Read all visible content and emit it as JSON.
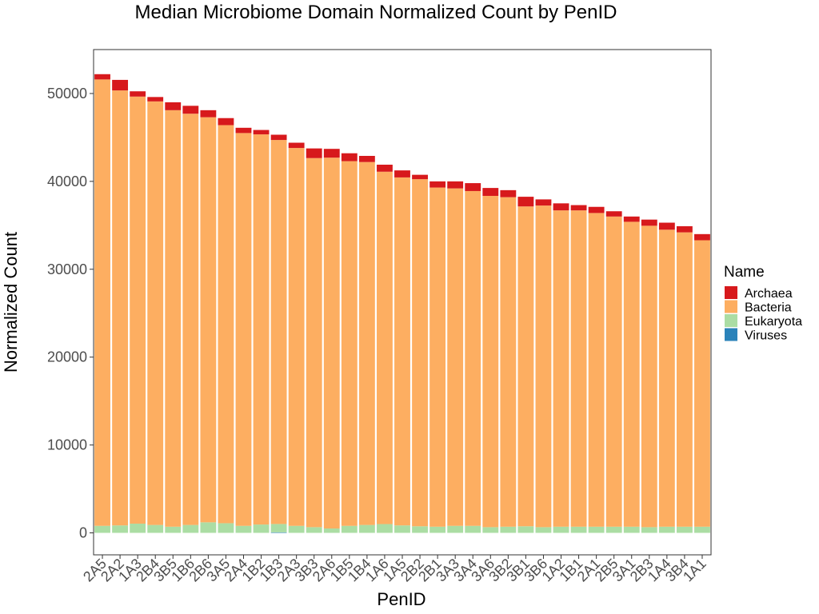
{
  "chart_data": {
    "type": "bar",
    "stacked": true,
    "title": "Median Microbiome Domain Normalized Count by PenID",
    "xlabel": "PenID",
    "ylabel": "Normalized Count",
    "ylim": [
      -2500,
      55000
    ],
    "yticks": [
      "0",
      "10000",
      "20000",
      "30000",
      "40000",
      "50000"
    ],
    "grid": false,
    "legend": {
      "title": "Name",
      "position": "right"
    },
    "categories": [
      "2A5",
      "2A2",
      "1A3",
      "2B4",
      "3B5",
      "1B6",
      "2B6",
      "3A5",
      "2A4",
      "1B2",
      "1B3",
      "2A3",
      "3B3",
      "2A6",
      "1B5",
      "1B4",
      "1A6",
      "1A5",
      "2B2",
      "2B1",
      "3A3",
      "3A4",
      "3A6",
      "3B2",
      "3B1",
      "3B6",
      "1A2",
      "1B1",
      "2A1",
      "2B5",
      "3A1",
      "2B3",
      "1A4",
      "3B4",
      "1A1"
    ],
    "series": [
      {
        "name": "Viruses",
        "color": "#2b83ba",
        "values": [
          0,
          0,
          0,
          0,
          0,
          0,
          0,
          0,
          0,
          0,
          60,
          0,
          0,
          0,
          0,
          0,
          0,
          0,
          0,
          0,
          0,
          0,
          0,
          0,
          0,
          0,
          0,
          0,
          0,
          0,
          0,
          0,
          0,
          0,
          0
        ]
      },
      {
        "name": "Eukaryota",
        "color": "#abdda4",
        "values": [
          800,
          850,
          1050,
          900,
          700,
          900,
          1200,
          1100,
          800,
          950,
          950,
          800,
          650,
          500,
          800,
          900,
          1000,
          850,
          750,
          700,
          800,
          800,
          650,
          700,
          750,
          650,
          700,
          700,
          700,
          700,
          700,
          650,
          700,
          700,
          700
        ]
      },
      {
        "name": "Bacteria",
        "color": "#fdae61",
        "values": [
          50800,
          49500,
          48600,
          48200,
          47400,
          46800,
          46100,
          45300,
          44700,
          44400,
          43700,
          43000,
          42000,
          42200,
          41500,
          41300,
          40100,
          39600,
          39500,
          38600,
          38400,
          38100,
          37700,
          37500,
          36400,
          36600,
          36000,
          36000,
          35700,
          35300,
          34700,
          34300,
          33800,
          33500,
          32600
        ]
      },
      {
        "name": "Archaea",
        "color": "#d7191c",
        "values": [
          600,
          1200,
          600,
          500,
          900,
          900,
          800,
          800,
          600,
          500,
          600,
          600,
          1100,
          1000,
          900,
          700,
          800,
          800,
          500,
          700,
          800,
          900,
          900,
          800,
          1100,
          700,
          800,
          600,
          700,
          600,
          600,
          700,
          800,
          700,
          700
        ]
      }
    ],
    "legend_order": [
      "Archaea",
      "Bacteria",
      "Eukaryota",
      "Viruses"
    ]
  }
}
